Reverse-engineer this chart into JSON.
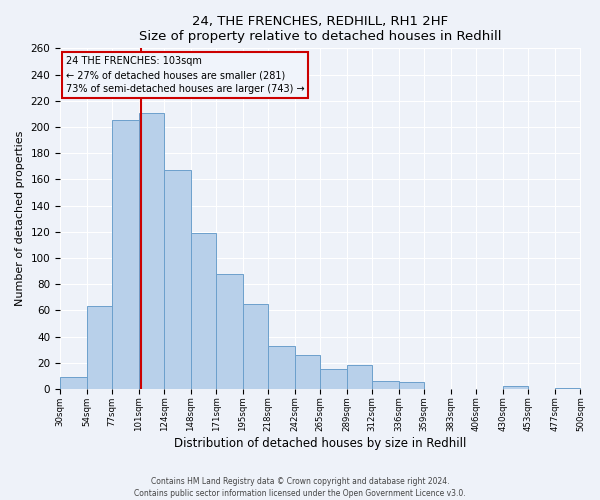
{
  "title": "24, THE FRENCHES, REDHILL, RH1 2HF",
  "subtitle": "Size of property relative to detached houses in Redhill",
  "xlabel": "Distribution of detached houses by size in Redhill",
  "ylabel": "Number of detached properties",
  "footer_line1": "Contains HM Land Registry data © Crown copyright and database right 2024.",
  "footer_line2": "Contains public sector information licensed under the Open Government Licence v3.0.",
  "bin_edges": [
    30,
    54,
    77,
    101,
    124,
    148,
    171,
    195,
    218,
    242,
    265,
    289,
    312,
    336,
    359,
    383,
    406,
    430,
    453,
    477,
    500
  ],
  "bin_counts": [
    9,
    63,
    205,
    211,
    167,
    119,
    88,
    65,
    33,
    26,
    15,
    18,
    6,
    5,
    0,
    0,
    0,
    2,
    0,
    1
  ],
  "bar_color": "#b8d0ea",
  "bar_edge_color": "#6ca0cc",
  "property_size": 103,
  "vline_color": "#cc0000",
  "annotation_line1": "24 THE FRENCHES: 103sqm",
  "annotation_line2": "← 27% of detached houses are smaller (281)",
  "annotation_line3": "73% of semi-detached houses are larger (743) →",
  "annotation_box_edgecolor": "#cc0000",
  "annotation_box_facecolor": "#f0f4fb",
  "ylim": [
    0,
    260
  ],
  "yticks": [
    0,
    20,
    40,
    60,
    80,
    100,
    120,
    140,
    160,
    180,
    200,
    220,
    240,
    260
  ],
  "tick_labels": [
    "30sqm",
    "54sqm",
    "77sqm",
    "101sqm",
    "124sqm",
    "148sqm",
    "171sqm",
    "195sqm",
    "218sqm",
    "242sqm",
    "265sqm",
    "289sqm",
    "312sqm",
    "336sqm",
    "359sqm",
    "383sqm",
    "406sqm",
    "430sqm",
    "453sqm",
    "477sqm",
    "500sqm"
  ],
  "background_color": "#eef2f9",
  "grid_color": "#ffffff"
}
